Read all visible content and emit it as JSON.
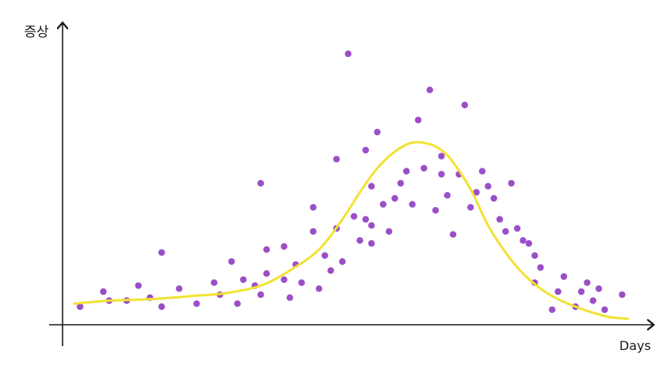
{
  "chart_data": {
    "type": "scatter",
    "title": "",
    "xlabel": "Days",
    "ylabel": "증상",
    "xlim": [
      0,
      100
    ],
    "ylim": [
      0,
      100
    ],
    "grid": false,
    "legend": "none",
    "colors": {
      "points": "#9a4fc8",
      "trend": "#f1e233",
      "axis": "#1a1a1a"
    },
    "series": [
      {
        "type": "scatter",
        "points": [
          [
            3,
            6
          ],
          [
            7,
            11
          ],
          [
            8,
            8
          ],
          [
            11,
            8
          ],
          [
            13,
            13
          ],
          [
            15,
            9
          ],
          [
            17,
            24
          ],
          [
            17,
            6
          ],
          [
            20,
            12
          ],
          [
            23,
            7
          ],
          [
            26,
            14
          ],
          [
            27,
            10
          ],
          [
            29,
            21
          ],
          [
            30,
            7
          ],
          [
            31,
            15
          ],
          [
            33,
            13
          ],
          [
            34,
            47
          ],
          [
            34,
            10
          ],
          [
            35,
            25
          ],
          [
            35,
            17
          ],
          [
            38,
            15
          ],
          [
            38,
            26
          ],
          [
            39,
            9
          ],
          [
            40,
            20
          ],
          [
            41,
            14
          ],
          [
            43,
            39
          ],
          [
            43,
            31
          ],
          [
            44,
            12
          ],
          [
            45,
            23
          ],
          [
            46,
            18
          ],
          [
            47,
            32
          ],
          [
            47,
            55
          ],
          [
            48,
            21
          ],
          [
            49,
            90
          ],
          [
            50,
            36
          ],
          [
            51,
            28
          ],
          [
            52,
            58
          ],
          [
            52,
            35
          ],
          [
            53,
            46
          ],
          [
            53,
            33
          ],
          [
            53,
            27
          ],
          [
            54,
            64
          ],
          [
            55,
            40
          ],
          [
            56,
            31
          ],
          [
            57,
            42
          ],
          [
            58,
            47
          ],
          [
            59,
            51
          ],
          [
            60,
            40
          ],
          [
            61,
            68
          ],
          [
            62,
            52
          ],
          [
            63,
            78
          ],
          [
            64,
            38
          ],
          [
            65,
            56
          ],
          [
            65,
            50
          ],
          [
            66,
            43
          ],
          [
            67,
            30
          ],
          [
            68,
            50
          ],
          [
            69,
            73
          ],
          [
            70,
            39
          ],
          [
            71,
            44
          ],
          [
            72,
            51
          ],
          [
            73,
            46
          ],
          [
            74,
            42
          ],
          [
            75,
            35
          ],
          [
            76,
            31
          ],
          [
            77,
            47
          ],
          [
            78,
            32
          ],
          [
            79,
            28
          ],
          [
            80,
            27
          ],
          [
            81,
            23
          ],
          [
            81,
            14
          ],
          [
            82,
            19
          ],
          [
            84,
            5
          ],
          [
            85,
            11
          ],
          [
            86,
            16
          ],
          [
            88,
            6
          ],
          [
            89,
            11
          ],
          [
            90,
            14
          ],
          [
            91,
            8
          ],
          [
            92,
            12
          ],
          [
            93,
            5
          ],
          [
            96,
            10
          ]
        ]
      },
      {
        "type": "line",
        "smooth": true,
        "x": [
          2,
          8,
          15,
          22,
          28,
          34,
          39,
          44,
          48,
          51,
          54,
          57,
          60,
          63,
          65,
          67,
          70,
          73,
          76,
          79,
          82,
          85,
          88,
          91,
          94,
          97
        ],
        "y": [
          7,
          8,
          8.5,
          9.5,
          10.5,
          13,
          18,
          25,
          35,
          44,
          52,
          57.5,
          60.5,
          60,
          58,
          54,
          45,
          33,
          24,
          17,
          12,
          8.5,
          6,
          4,
          2.5,
          2
        ]
      }
    ]
  }
}
